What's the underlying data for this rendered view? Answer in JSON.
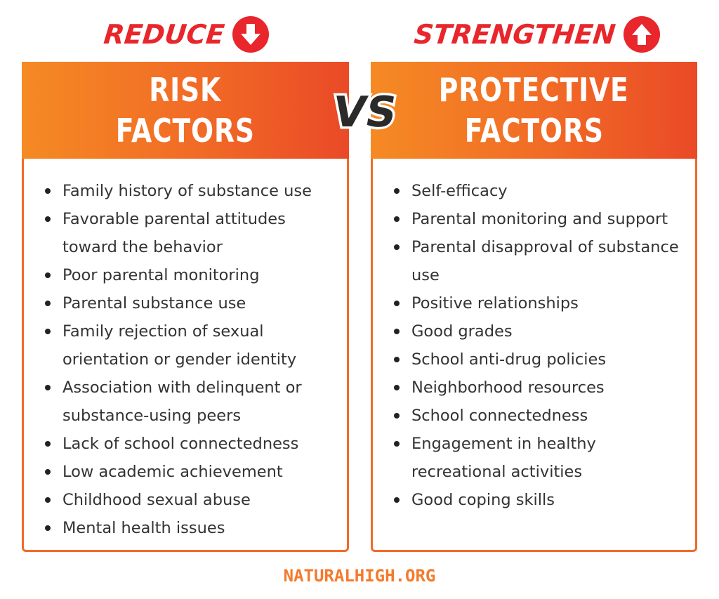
{
  "left": {
    "top_label": "REDUCE",
    "arrow_icon": "arrow-down-circle-icon",
    "header_line1": "RISK",
    "header_line2": "FACTORS",
    "items": [
      "Family history of substance use",
      "Favorable parental attitudes toward the behavior",
      "Poor parental monitoring",
      "Parental substance use",
      "Family rejection of sexual orientation or gender identity",
      "Association with delinquent or substance-using peers",
      "Lack of school connectedness",
      "Low academic achievement",
      "Childhood sexual abuse",
      "Mental health issues"
    ]
  },
  "right": {
    "top_label": "STRENGTHEN",
    "arrow_icon": "arrow-up-circle-icon",
    "header_line1": "PROTECTIVE",
    "header_line2": "FACTORS",
    "items": [
      "Self-efficacy",
      "Parental monitoring and support",
      "Parental disapproval of substance use",
      "Positive relationships",
      "Good grades",
      "School anti-drug policies",
      "Neighborhood resources",
      "School connectedness",
      "Engagement in healthy recreational activities",
      "Good coping skills"
    ]
  },
  "vs_text": "VS",
  "footer": "NATURALHIGH.ORG",
  "colors": {
    "red": "#e8262b",
    "orange_light": "#f58a24",
    "orange_dark": "#ea4a27",
    "border": "#f06a2a",
    "footer": "#f47a2c"
  }
}
